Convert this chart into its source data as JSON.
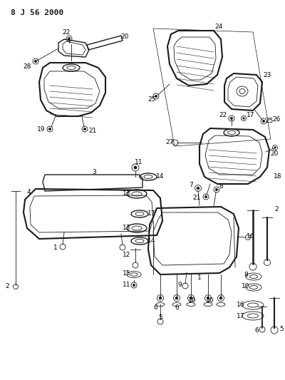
{
  "title": "8 J 56 2000",
  "bg_color": "#ffffff",
  "line_color": "#1a1a1a",
  "fig_width": 4.0,
  "fig_height": 5.33,
  "dpi": 100
}
